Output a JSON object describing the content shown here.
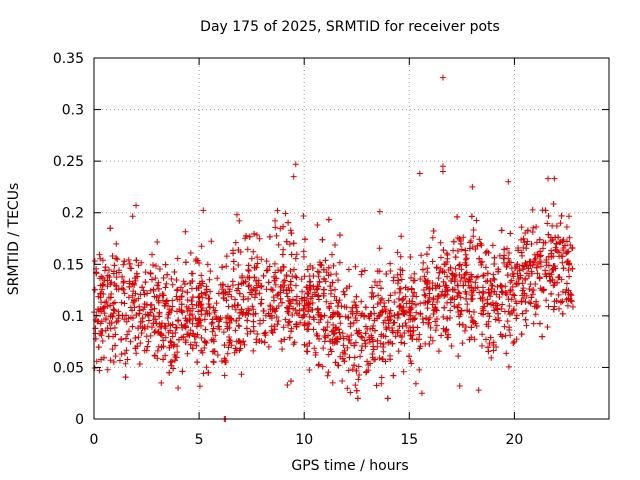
{
  "chart_data": {
    "type": "scatter",
    "title": "Day 175 of 2025, SRMTID for receiver pots",
    "xlabel": "GPS time / hours",
    "ylabel": "SRMTID / TECUs",
    "xlim": [
      0,
      24.5
    ],
    "ylim": [
      0,
      0.35
    ],
    "xticks": [
      0,
      5,
      10,
      15,
      20
    ],
    "xtick_labels": [
      "0",
      "5",
      "10",
      "15",
      "20"
    ],
    "yticks": [
      0,
      0.05,
      0.1,
      0.15,
      0.2,
      0.25,
      0.3,
      0.35
    ],
    "ytick_labels": [
      "0",
      "0.05",
      "0.1",
      "0.15",
      "0.2",
      "0.25",
      "0.3",
      "0.35"
    ],
    "grid": true,
    "marker": "+",
    "color": "#e00000",
    "x_range_of_data": [
      0.0,
      22.8
    ],
    "level_profile": {
      "hours": [
        0,
        1,
        2,
        3,
        4,
        5,
        6,
        7,
        8,
        9,
        10,
        11,
        12,
        13,
        14,
        15,
        16,
        17,
        18,
        19,
        20,
        21,
        22,
        22.8
      ],
      "typical_value": [
        0.105,
        0.105,
        0.11,
        0.1,
        0.095,
        0.1,
        0.1,
        0.11,
        0.12,
        0.13,
        0.11,
        0.105,
        0.085,
        0.08,
        0.1,
        0.105,
        0.12,
        0.13,
        0.125,
        0.11,
        0.125,
        0.14,
        0.15,
        0.14
      ]
    },
    "notable_points": [
      {
        "x": 16.6,
        "y": 0.331
      },
      {
        "x": 16.6,
        "y": 0.245
      },
      {
        "x": 16.6,
        "y": 0.24
      },
      {
        "x": 9.6,
        "y": 0.247
      },
      {
        "x": 9.5,
        "y": 0.235
      },
      {
        "x": 15.5,
        "y": 0.238
      },
      {
        "x": 21.6,
        "y": 0.233
      },
      {
        "x": 21.9,
        "y": 0.233
      },
      {
        "x": 18.0,
        "y": 0.225
      },
      {
        "x": 2.0,
        "y": 0.207
      },
      {
        "x": 13.6,
        "y": 0.201
      },
      {
        "x": 6.8,
        "y": 0.198
      },
      {
        "x": 15.6,
        "y": 0.025
      },
      {
        "x": 17.4,
        "y": 0.032
      },
      {
        "x": 18.3,
        "y": 0.028
      },
      {
        "x": 4.0,
        "y": 0.03
      },
      {
        "x": 3.2,
        "y": 0.035
      },
      {
        "x": 9.2,
        "y": 0.033
      },
      {
        "x": 6.2,
        "y": 0.0
      },
      {
        "x": 6.25,
        "y": 0.0
      }
    ]
  }
}
